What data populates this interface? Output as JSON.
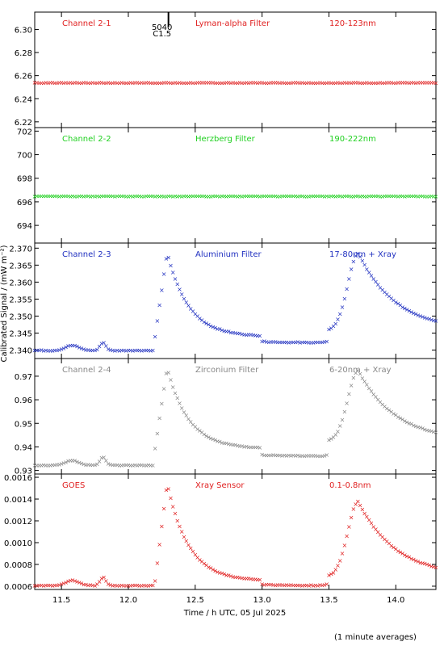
{
  "x_axis": {
    "label": "Time / h UTC, 05 Jul 2025",
    "xlim": [
      11.3,
      14.3
    ],
    "ticks": [
      11.5,
      12.0,
      12.5,
      13.0,
      13.5,
      14.0
    ],
    "tick_labels": [
      "11.5",
      "12.0",
      "12.5",
      "13.0",
      "13.5",
      "14.0"
    ]
  },
  "y_axis_label": "Calibrated Signal / (mW m⁻²)",
  "footnote": "(1 minute averages)",
  "marker_annotation": {
    "line1": "5040",
    "line2": "C1.5",
    "x": 12.3
  },
  "chart_data": [
    {
      "type": "scatter",
      "channel": "Channel 2-1",
      "filter": "Lyman-alpha Filter",
      "band": "120-123nm",
      "color": "#e02020",
      "ylim": [
        6.215,
        6.315
      ],
      "yticks": [
        6.22,
        6.24,
        6.26,
        6.28,
        6.3
      ],
      "ytick_labels": [
        "6.22",
        "6.24",
        "6.26",
        "6.28",
        "6.30"
      ],
      "profile": {
        "base": 6.254,
        "flat": true
      }
    },
    {
      "type": "scatter",
      "channel": "Channel 2-2",
      "filter": "Herzberg Filter",
      "band": "190-222nm",
      "color": "#20d020",
      "ylim": [
        692.5,
        702.3
      ],
      "yticks": [
        694,
        696,
        698,
        700,
        702
      ],
      "ytick_labels": [
        "694",
        "696",
        "698",
        "700",
        "702"
      ],
      "profile": {
        "base": 696.5,
        "flat": true
      }
    },
    {
      "type": "scatter",
      "channel": "Channel 2-3",
      "filter": "Aluminium Filter",
      "band": "17-80nm + Xray",
      "color": "#2030c0",
      "ylim": [
        2.3375,
        2.3715
      ],
      "yticks": [
        2.34,
        2.345,
        2.35,
        2.355,
        2.36,
        2.365,
        2.37
      ],
      "ytick_labels": [
        "2.340",
        "2.345",
        "2.350",
        "2.355",
        "2.360",
        "2.365",
        "2.370"
      ],
      "profile": {
        "pre": 2.3394,
        "floor": 2.3423,
        "tail": 2.3458,
        "peak1": 2.3688,
        "peak2": 2.3686
      }
    },
    {
      "type": "scatter",
      "channel": "Channel 2-4",
      "filter": "Zirconium Filter",
      "band": "6-20nm + Xray",
      "color": "#888888",
      "ylim": [
        0.9285,
        0.9775
      ],
      "yticks": [
        0.93,
        0.94,
        0.95,
        0.96,
        0.97
      ],
      "ytick_labels": [
        "0.93",
        "0.94",
        "0.95",
        "0.96",
        "0.97"
      ],
      "profile": {
        "pre": 0.9315,
        "floor": 0.9363,
        "tail": 0.9425,
        "peak1": 0.9738,
        "peak2": 0.9725
      }
    },
    {
      "type": "scatter",
      "channel": "GOES",
      "filter": "Xray Sensor",
      "band": "0.1-0.8nm",
      "color": "#e02020",
      "ylim": [
        0.00057,
        0.00163
      ],
      "yticks": [
        0.0006,
        0.0008,
        0.001,
        0.0012,
        0.0014,
        0.0016
      ],
      "ytick_labels": [
        "0.0006",
        "0.0008",
        "0.0010",
        "0.0012",
        "0.0014",
        "0.0016"
      ],
      "profile": {
        "pre": 0.00059,
        "floor": 0.00061,
        "tail": 0.00069,
        "peak1": 0.00155,
        "peak2": 0.00138
      }
    }
  ]
}
